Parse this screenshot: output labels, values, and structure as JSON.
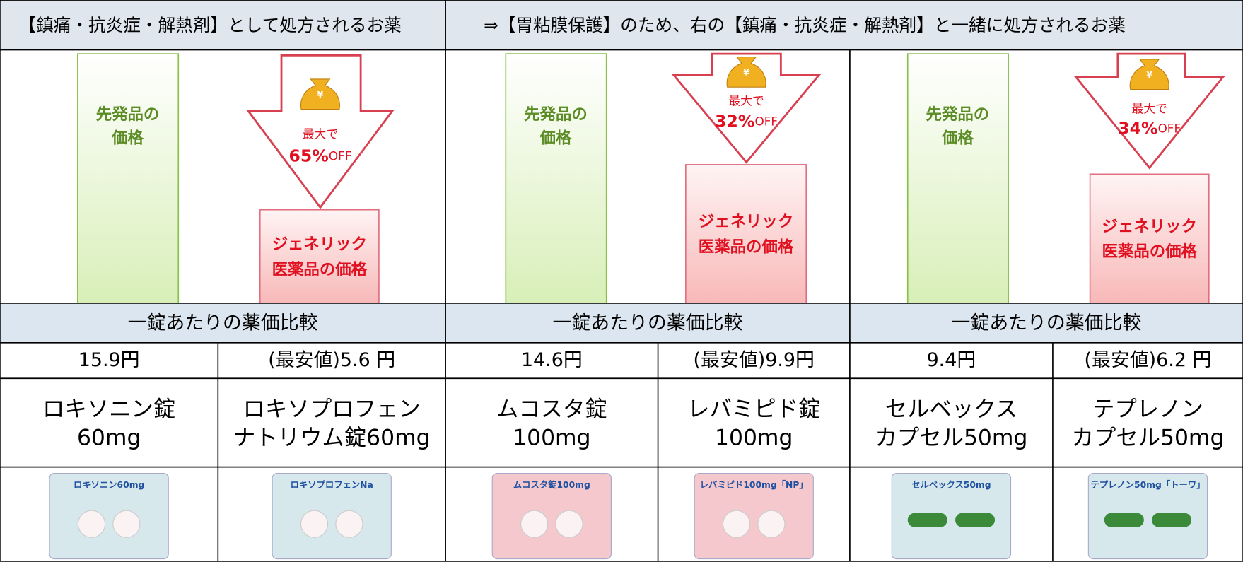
{
  "header": {
    "left": "【鎮痛・抗炎症・解熱剤】として処方されるお薬",
    "right": "⇒【胃粘膜保護】のため、右の【鎮痛・抗炎症・解熱剤】と一緒に処方されるお薬"
  },
  "groups": [
    {
      "brand_label": [
        "先発品の",
        "価格"
      ],
      "discount": {
        "prefix": "最大で",
        "percent": "65%",
        "suffix": "OFF"
      },
      "generic_label": [
        "ジェネリック",
        "医薬品の価格"
      ],
      "comparison": "一錠あたりの薬価比較",
      "brand": {
        "price": "15.9円",
        "name": [
          "ロキソニン錠",
          "60mg"
        ],
        "image_label": "ロキソニン60mg"
      },
      "generic": {
        "price": "(最安値)5.6 円",
        "name": [
          "ロキソプロフェン",
          "ナトリウム錠60mg"
        ],
        "image_label": "ロキソプロフェンNa"
      }
    },
    {
      "brand_label": [
        "先発品の",
        "価格"
      ],
      "discount": {
        "prefix": "最大で",
        "percent": "32%",
        "suffix": "OFF"
      },
      "generic_label": [
        "ジェネリック",
        "医薬品の価格"
      ],
      "comparison": "一錠あたりの薬価比較",
      "brand": {
        "price": "14.6円",
        "name": [
          "ムコスタ錠",
          "100mg"
        ],
        "image_label": "ムコスタ錠100mg"
      },
      "generic": {
        "price": "(最安値)9.9円",
        "name": [
          "レバミピド錠",
          "100mg"
        ],
        "image_label": "レバミピド100mg「NP」"
      }
    },
    {
      "brand_label": [
        "先発品の",
        "価格"
      ],
      "discount": {
        "prefix": "最大で",
        "percent": "34%",
        "suffix": "OFF"
      },
      "generic_label": [
        "ジェネリック",
        "医薬品の価格"
      ],
      "comparison": "一錠あたりの薬価比較",
      "brand": {
        "price": "9.4円",
        "name": [
          "セルベックス",
          "カプセル50mg"
        ],
        "image_label": "セルベックス50mg"
      },
      "generic": {
        "price": "(最安値)6.2 円",
        "name": [
          "テプレノン",
          "カプセル50mg"
        ],
        "image_label": "テプレノン50mg「トーワ」"
      }
    }
  ]
}
